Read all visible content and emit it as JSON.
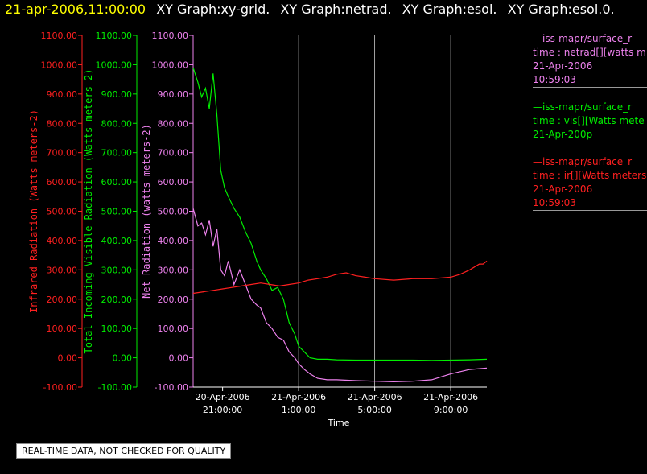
{
  "header": {
    "timestamp": "21-apr-2006,11:00:00",
    "graphs": [
      "XY Graph:xy-grid.",
      "XY Graph:netrad.",
      "XY Graph:esol.",
      "XY Graph:esol.0."
    ]
  },
  "legend": [
    {
      "lines": [
        "—iss-mapr/surface_r",
        "time : netrad[][watts m",
        "21-Apr-2006",
        "10:59:03"
      ],
      "color": "#ee82ee"
    },
    {
      "lines": [
        "—iss-mapr/surface_r",
        "time : vis[][Watts mete",
        "21-Apr-200p"
      ],
      "color": "#00ee00"
    },
    {
      "lines": [
        "—iss-mapr/surface_r",
        "time : ir[][Watts meters",
        "21-Apr-2006",
        "10:59:03"
      ],
      "color": "#ff2020"
    }
  ],
  "footer_note": "REAL-TIME DATA, NOT CHECKED FOR QUALITY",
  "chart_data": {
    "type": "line",
    "xlabel": "Time",
    "x_ticks": [
      {
        "line1": "20-Apr-2006",
        "line2": "21:00:00",
        "hours": 0
      },
      {
        "line1": "21-Apr-2006",
        "line2": "1:00:00",
        "hours": 4
      },
      {
        "line1": "21-Apr-2006",
        "line2": "5:00:00",
        "hours": 8
      },
      {
        "line1": "21-Apr-2006",
        "line2": "9:00:00",
        "hours": 12
      }
    ],
    "xlim_hours": [
      -1.55,
      13.9
    ],
    "grid_x": true,
    "axes": [
      {
        "id": "ir",
        "label": "Infrared Radiation (Watts meters-2)",
        "color": "#ff2020",
        "ylim": [
          -100,
          1100
        ],
        "ticks": [
          "-100.00",
          "0.00",
          "100.00",
          "200.00",
          "300.00",
          "400.00",
          "500.00",
          "600.00",
          "700.00",
          "800.00",
          "900.00",
          "1000.00",
          "1100.00"
        ]
      },
      {
        "id": "vis",
        "label": "Total Incoming Visible Radiation (Watts meters-2)",
        "color": "#00ee00",
        "ylim": [
          -100,
          1100
        ],
        "ticks": [
          "-100.00",
          "0.00",
          "100.00",
          "200.00",
          "300.00",
          "400.00",
          "500.00",
          "600.00",
          "700.00",
          "800.00",
          "900.00",
          "1000.00",
          "1100.00"
        ]
      },
      {
        "id": "netrad",
        "label": "Net Radiation (watts meters-2)",
        "color": "#ee82ee",
        "ylim": [
          -100,
          1100
        ],
        "ticks": [
          "-100.00",
          "0.00",
          "100.00",
          "200.00",
          "300.00",
          "400.00",
          "500.00",
          "600.00",
          "700.00",
          "800.00",
          "900.00",
          "1000.00",
          "1100.00"
        ]
      }
    ],
    "series": [
      {
        "name": "vis",
        "color": "#00ee00",
        "x": [
          -1.55,
          -1.3,
          -1.1,
          -0.9,
          -0.7,
          -0.5,
          -0.3,
          -0.1,
          0.1,
          0.3,
          0.6,
          0.9,
          1.2,
          1.5,
          1.8,
          2.0,
          2.3,
          2.6,
          2.9,
          3.2,
          3.5,
          3.8,
          4.0,
          4.3,
          4.6,
          5.0,
          5.5,
          6,
          7,
          8,
          9,
          10,
          11,
          12,
          13,
          13.9
        ],
        "y": [
          990,
          940,
          890,
          920,
          850,
          970,
          830,
          640,
          580,
          550,
          510,
          480,
          430,
          390,
          330,
          300,
          270,
          230,
          240,
          200,
          120,
          80,
          40,
          20,
          0,
          -5,
          -5,
          -7,
          -8,
          -8,
          -8,
          -8,
          -9,
          -8,
          -7,
          -5
        ]
      },
      {
        "name": "netrad",
        "color": "#ee82ee",
        "x": [
          -1.55,
          -1.3,
          -1.1,
          -0.9,
          -0.7,
          -0.5,
          -0.3,
          -0.1,
          0.1,
          0.3,
          0.6,
          0.9,
          1.2,
          1.5,
          1.8,
          2.0,
          2.3,
          2.6,
          2.9,
          3.2,
          3.5,
          3.8,
          4.0,
          4.3,
          4.6,
          5.0,
          5.5,
          6,
          7,
          8,
          9,
          10,
          11,
          12,
          13,
          13.9
        ],
        "y": [
          510,
          450,
          460,
          420,
          470,
          380,
          440,
          300,
          280,
          330,
          250,
          300,
          250,
          200,
          180,
          170,
          120,
          100,
          70,
          60,
          20,
          0,
          -20,
          -40,
          -55,
          -70,
          -75,
          -75,
          -78,
          -80,
          -82,
          -80,
          -75,
          -55,
          -40,
          -35
        ]
      },
      {
        "name": "ir",
        "color": "#ff2020",
        "x": [
          -1.55,
          -1,
          -0.5,
          0,
          0.5,
          1,
          1.5,
          2,
          2.5,
          3,
          3.5,
          4,
          4.5,
          5,
          5.5,
          6,
          6.5,
          7,
          7.5,
          8,
          9,
          10,
          11,
          12,
          12.5,
          13,
          13.5,
          13.7,
          13.9
        ],
        "y": [
          220,
          225,
          230,
          235,
          240,
          245,
          250,
          255,
          250,
          245,
          250,
          255,
          265,
          270,
          275,
          285,
          290,
          280,
          275,
          270,
          265,
          270,
          270,
          275,
          285,
          300,
          320,
          320,
          330
        ]
      }
    ]
  }
}
